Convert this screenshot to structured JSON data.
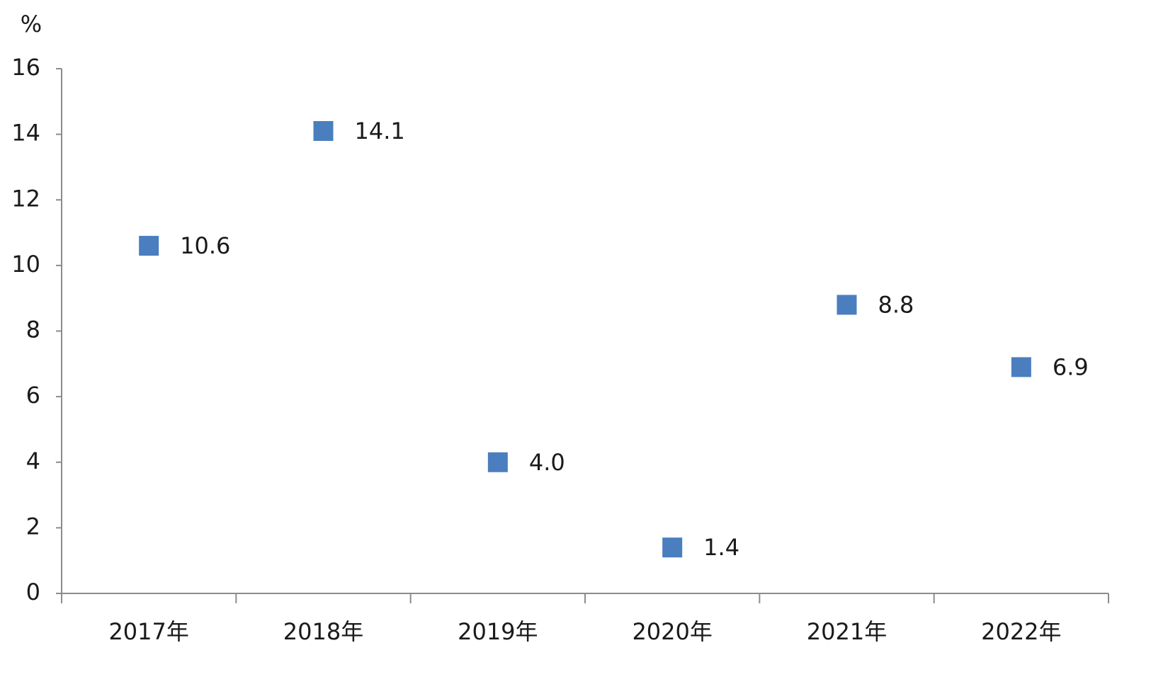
{
  "chart_data": {
    "type": "line",
    "ylabel": "%",
    "categories": [
      "2017年",
      "2018年",
      "2019年",
      "2020年",
      "2021年",
      "2022年"
    ],
    "series": [
      {
        "values": [
          10.6,
          14.1,
          4.0,
          1.4,
          8.8,
          6.9
        ],
        "value_labels": [
          "10.6",
          "14.1",
          "4.0",
          "1.4",
          "8.8",
          "6.9"
        ],
        "color": "#4a7ebf"
      }
    ],
    "ylim": [
      0,
      16
    ],
    "yticks": [
      0,
      2,
      4,
      6,
      8,
      10,
      12,
      14,
      16
    ],
    "grid": false
  }
}
